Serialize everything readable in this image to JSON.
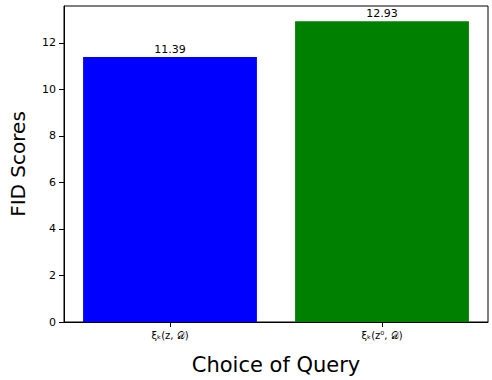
{
  "chart_data": {
    "type": "bar",
    "categories": [
      "ξₖ(z, 𝒟)",
      "ξₖ(z⁰, 𝒟)"
    ],
    "values": [
      11.39,
      12.93
    ],
    "colors": [
      "#0000ff",
      "#008000"
    ],
    "xlabel": "Choice of Query",
    "ylabel": "FID Scores",
    "ylim": [
      0,
      13.58
    ],
    "yticks": [
      0,
      2,
      4,
      6,
      8,
      10,
      12
    ],
    "data_labels": true,
    "grid": false
  }
}
